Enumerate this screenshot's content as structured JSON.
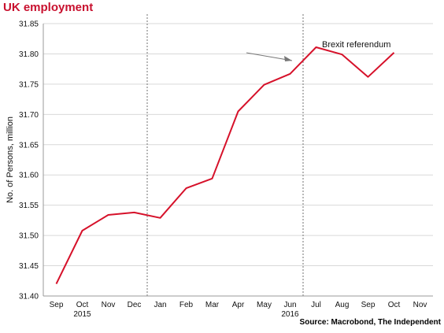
{
  "title": "UK employment",
  "source": "Source: Macrobond, The Independent",
  "chart_data": {
    "type": "line",
    "title": "UK employment",
    "ylabel": "No. of Persons, million",
    "xlabel": "",
    "categories": [
      "Sep",
      "Oct",
      "Nov",
      "Dec",
      "Jan",
      "Feb",
      "Mar",
      "Apr",
      "May",
      "Jun",
      "Jul",
      "Aug",
      "Sep",
      "Oct",
      "Nov"
    ],
    "year_labels": [
      {
        "label": "2015",
        "at_category": 1
      },
      {
        "label": "2016",
        "at_category": 9
      }
    ],
    "series": [
      {
        "values": [
          31.42,
          31.508,
          31.534,
          31.538,
          31.529,
          31.578,
          31.594,
          31.705,
          31.749,
          31.767,
          31.811,
          31.799,
          31.762,
          31.802,
          null
        ],
        "color": "#d6112a"
      }
    ],
    "ylim": [
      31.4,
      31.85
    ],
    "yticks": [
      31.4,
      31.45,
      31.5,
      31.55,
      31.6,
      31.65,
      31.7,
      31.75,
      31.8,
      31.85
    ],
    "grid": true,
    "year_dividers": [
      3.5,
      9.5
    ],
    "annotations": [
      {
        "text": "Brexit referendum",
        "arrow_to_category": 9.5
      }
    ]
  }
}
